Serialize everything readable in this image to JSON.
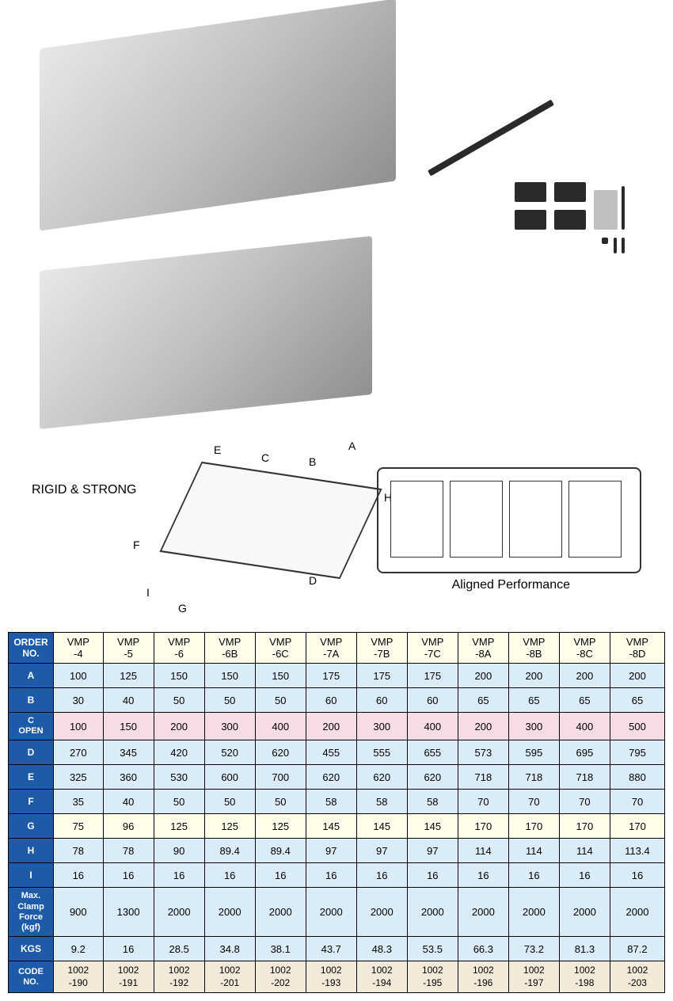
{
  "labels": {
    "rigid": "RIGID & STRONG",
    "aligned": "Aligned Performance",
    "dims": {
      "A": "A",
      "B": "B",
      "C": "C",
      "D": "D",
      "E": "E",
      "F": "F",
      "G": "G",
      "H": "H",
      "I": "I"
    }
  },
  "table": {
    "header_label": "ORDER NO.",
    "columns": [
      "VMP -4",
      "VMP -5",
      "VMP -6",
      "VMP -6B",
      "VMP -6C",
      "VMP -7A",
      "VMP -7B",
      "VMP -7C",
      "VMP -8A",
      "VMP -8B",
      "VMP -8C",
      "VMP -8D"
    ],
    "rows": [
      {
        "label": "A",
        "class": "row-blue",
        "cells": [
          "100",
          "125",
          "150",
          "150",
          "150",
          "175",
          "175",
          "175",
          "200",
          "200",
          "200",
          "200"
        ]
      },
      {
        "label": "B",
        "class": "row-blue",
        "cells": [
          "30",
          "40",
          "50",
          "50",
          "50",
          "60",
          "60",
          "60",
          "65",
          "65",
          "65",
          "65"
        ]
      },
      {
        "label": "C OPEN",
        "class": "row-pink",
        "multiline": true,
        "cells": [
          "100",
          "150",
          "200",
          "300",
          "400",
          "200",
          "300",
          "400",
          "200",
          "300",
          "400",
          "500"
        ]
      },
      {
        "label": "D",
        "class": "row-blue",
        "cells": [
          "270",
          "345",
          "420",
          "520",
          "620",
          "455",
          "555",
          "655",
          "573",
          "595",
          "695",
          "795"
        ]
      },
      {
        "label": "E",
        "class": "row-blue",
        "cells": [
          "325",
          "360",
          "530",
          "600",
          "700",
          "620",
          "620",
          "620",
          "718",
          "718",
          "718",
          "880"
        ]
      },
      {
        "label": "F",
        "class": "row-blue",
        "cells": [
          "35",
          "40",
          "50",
          "50",
          "50",
          "58",
          "58",
          "58",
          "70",
          "70",
          "70",
          "70"
        ]
      },
      {
        "label": "G",
        "class": "row-yellow",
        "cells": [
          "75",
          "96",
          "125",
          "125",
          "125",
          "145",
          "145",
          "145",
          "170",
          "170",
          "170",
          "170"
        ]
      },
      {
        "label": "H",
        "class": "row-blue",
        "cells": [
          "78",
          "78",
          "90",
          "89.4",
          "89.4",
          "97",
          "97",
          "97",
          "114",
          "114",
          "114",
          "113.4"
        ]
      },
      {
        "label": "I",
        "class": "row-blue",
        "cells": [
          "16",
          "16",
          "16",
          "16",
          "16",
          "16",
          "16",
          "16",
          "16",
          "16",
          "16",
          "16"
        ]
      },
      {
        "label": "Max. Clamp Force (kgf)",
        "class": "row-blue",
        "multiline": true,
        "cells": [
          "900",
          "1300",
          "2000",
          "2000",
          "2000",
          "2000",
          "2000",
          "2000",
          "2000",
          "2000",
          "2000",
          "2000"
        ]
      },
      {
        "label": "KGS",
        "class": "row-blue",
        "cells": [
          "9.2",
          "16",
          "28.5",
          "34.8",
          "38.1",
          "43.7",
          "48.3",
          "53.5",
          "66.3",
          "73.2",
          "81.3",
          "87.2"
        ]
      },
      {
        "label": "CODE NO.",
        "class": "row-tan",
        "multiline": true,
        "code": true,
        "cells": [
          "1002 -190",
          "1002 -191",
          "1002 -192",
          "1002 -201",
          "1002 -202",
          "1002 -193",
          "1002 -194",
          "1002 -195",
          "1002 -196",
          "1002 -197",
          "1002 -198",
          "1002 -203"
        ]
      }
    ]
  },
  "colors": {
    "header_bg": "#1d5aa8",
    "col_header_bg": "#fefde9",
    "row_blue": "#d9ecf7",
    "row_pink": "#f5dce5",
    "row_yellow": "#fefde9",
    "row_tan": "#f3e9d9",
    "border": "#000000"
  }
}
